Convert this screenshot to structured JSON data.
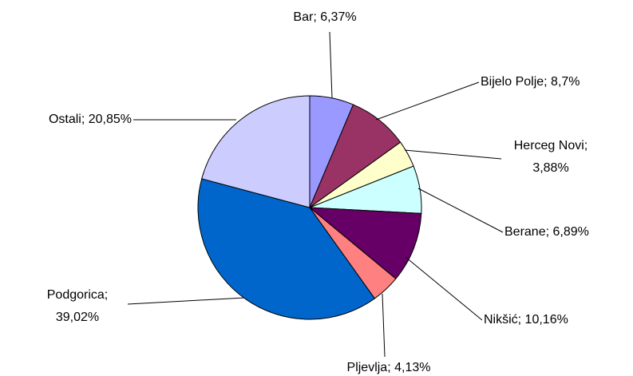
{
  "chart_data": {
    "type": "pie",
    "labels": [
      "Bar; 6,37%",
      "Bijelo Polje; 8,7%",
      "Herceg Novi; 3,88%",
      "Berane; 6,89%",
      "Nikšić; 10,16%",
      "Pljevlja; 4,13%",
      "Podgorica; 39,02%",
      "Ostali; 20,85%"
    ],
    "values": [
      6.37,
      8.7,
      3.88,
      6.89,
      10.16,
      4.13,
      39.02,
      20.85
    ],
    "colors": [
      "#9999ff",
      "#993366",
      "#ffffcc",
      "#ccffff",
      "#660066",
      "#ff8080",
      "#0066cc",
      "#ccccff"
    ]
  }
}
